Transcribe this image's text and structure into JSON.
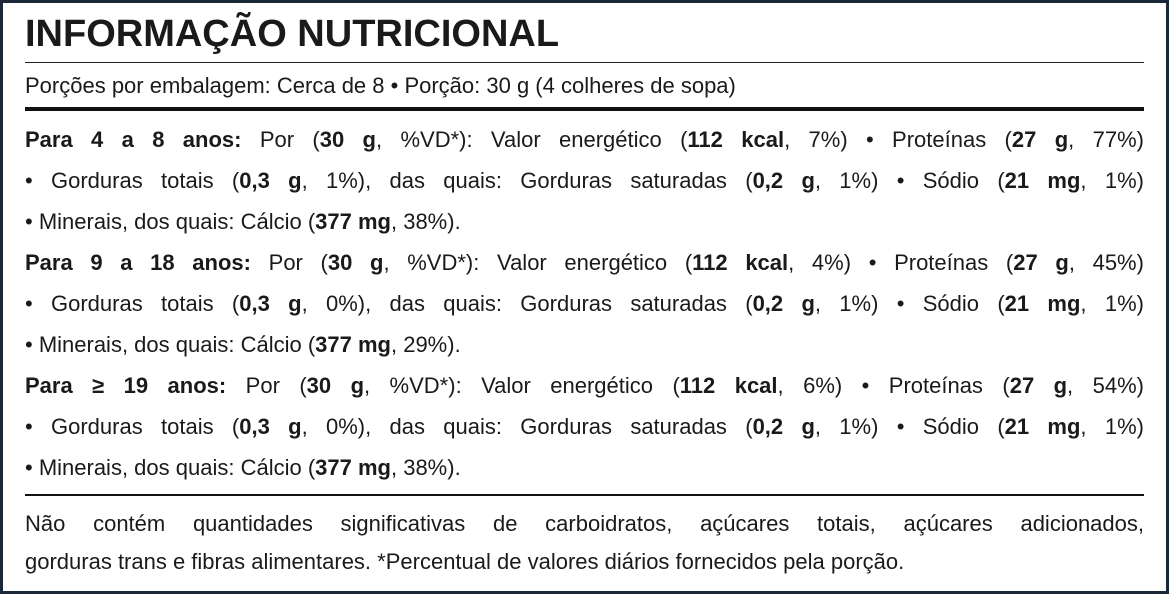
{
  "title": "INFORMAÇÃO NUTRICIONAL",
  "serving": "Porções por embalagem: Cerca de 8 • Porção: 30 g (4 colheres de sopa)",
  "sections": [
    [
      [
        {
          "text": "Para 4 a 8 anos:",
          "bold": true
        },
        {
          "text": " Por ("
        },
        {
          "text": "30 g",
          "bold": true
        },
        {
          "text": ", %VD*): Valor energético ("
        },
        {
          "text": "112 kcal",
          "bold": true
        },
        {
          "text": ", 7%) • Proteínas ("
        },
        {
          "text": "27 g",
          "bold": true
        },
        {
          "text": ", 77%)"
        }
      ],
      [
        {
          "text": "• Gorduras totais ("
        },
        {
          "text": "0,3 g",
          "bold": true
        },
        {
          "text": ", 1%), das quais: Gorduras saturadas ("
        },
        {
          "text": "0,2 g",
          "bold": true
        },
        {
          "text": ", 1%) • Sódio ("
        },
        {
          "text": "21 mg",
          "bold": true
        },
        {
          "text": ", 1%)"
        }
      ],
      [
        {
          "text": "• Minerais, dos quais: Cálcio ("
        },
        {
          "text": "377 mg",
          "bold": true
        },
        {
          "text": ", 38%)."
        }
      ]
    ],
    [
      [
        {
          "text": "Para 9 a 18 anos:",
          "bold": true
        },
        {
          "text": " Por ("
        },
        {
          "text": "30 g",
          "bold": true
        },
        {
          "text": ", %VD*): Valor energético ("
        },
        {
          "text": "112 kcal",
          "bold": true
        },
        {
          "text": ", 4%) • Proteínas ("
        },
        {
          "text": "27 g",
          "bold": true
        },
        {
          "text": ", 45%)"
        }
      ],
      [
        {
          "text": "• Gorduras totais ("
        },
        {
          "text": "0,3 g",
          "bold": true
        },
        {
          "text": ", 0%), das quais: Gorduras saturadas ("
        },
        {
          "text": "0,2 g",
          "bold": true
        },
        {
          "text": ", 1%) • Sódio ("
        },
        {
          "text": "21 mg",
          "bold": true
        },
        {
          "text": ", 1%)"
        }
      ],
      [
        {
          "text": "• Minerais, dos quais: Cálcio ("
        },
        {
          "text": "377 mg",
          "bold": true
        },
        {
          "text": ", 29%)."
        }
      ]
    ],
    [
      [
        {
          "text": "Para ≥ 19 anos:",
          "bold": true
        },
        {
          "text": " Por ("
        },
        {
          "text": "30 g",
          "bold": true
        },
        {
          "text": ", %VD*): Valor energético ("
        },
        {
          "text": "112 kcal",
          "bold": true
        },
        {
          "text": ", 6%) • Proteínas ("
        },
        {
          "text": "27 g",
          "bold": true
        },
        {
          "text": ", 54%)"
        }
      ],
      [
        {
          "text": "• Gorduras totais ("
        },
        {
          "text": "0,3 g",
          "bold": true
        },
        {
          "text": ", 0%), das quais: Gorduras saturadas ("
        },
        {
          "text": "0,2 g",
          "bold": true
        },
        {
          "text": ", 1%) • Sódio ("
        },
        {
          "text": "21 mg",
          "bold": true
        },
        {
          "text": ", 1%)"
        }
      ],
      [
        {
          "text": "• Minerais, dos quais: Cálcio ("
        },
        {
          "text": "377 mg",
          "bold": true
        },
        {
          "text": ", 38%)."
        }
      ]
    ]
  ],
  "footer": [
    "Não contém quantidades significativas de carboidratos, açúcares totais, açúcares adicionados,",
    "gorduras trans e fibras alimentares. *Percentual de valores diários fornecidos pela porção."
  ]
}
